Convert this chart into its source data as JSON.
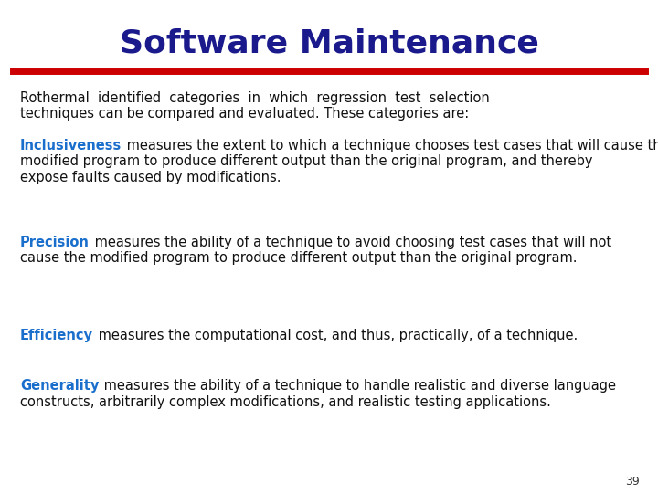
{
  "title": "Software Maintenance",
  "title_color": "#1a1a8c",
  "title_fontsize": 26,
  "line_color": "#cc0000",
  "background_color": "#ffffff",
  "page_number": "39",
  "intro_lines": [
    "Rothermal  identified  categories  in  which  regression  test  selection",
    "techniques can be compared and evaluated. These categories are:"
  ],
  "sections": [
    {
      "keyword": "Inclusiveness",
      "keyword_color": "#1a6fcc",
      "lines": [
        " measures the extent to which a technique chooses test cases that will cause the",
        "modified program to produce different output than the original program, and thereby",
        "expose faults caused by modifications."
      ]
    },
    {
      "keyword": "Precision",
      "keyword_color": "#1a6fcc",
      "lines": [
        " measures the ability of a technique to avoid choosing test cases that will not",
        "cause the modified program to produce different output than the original program."
      ]
    },
    {
      "keyword": "Efficiency",
      "keyword_color": "#1a6fcc",
      "lines": [
        " measures the computational cost, and thus, practically, of a technique."
      ]
    },
    {
      "keyword": "Generality",
      "keyword_color": "#1a6fcc",
      "lines": [
        " measures the ability of a technique to handle realistic and diverse language",
        "constructs, arbitrarily complex modifications, and realistic testing applications."
      ]
    }
  ]
}
